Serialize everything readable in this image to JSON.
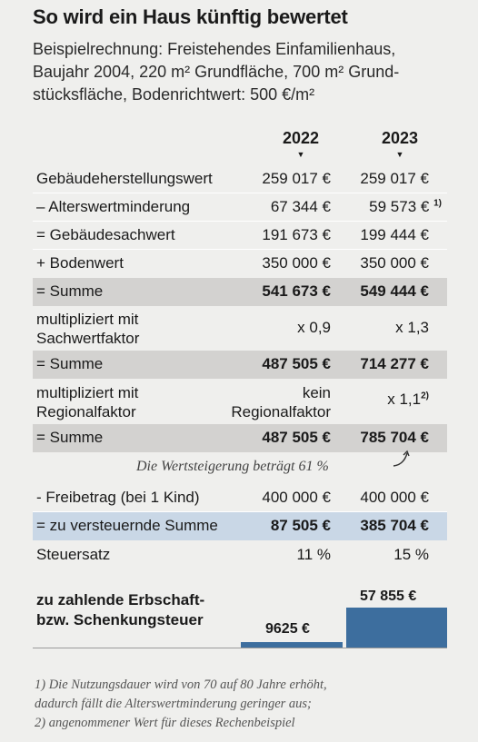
{
  "title": "So wird ein Haus künftig bewertet",
  "subtitle": {
    "line1": "Beispielrechnung: Freistehendes Einfamilienhaus,",
    "line2": "Baujahr 2004, 220 m² Grundfläche, 700 m² Grund-",
    "line3": "stücksfläche, Bodenrichtwert: 500 €/m²"
  },
  "years": {
    "y1": "2022",
    "y2": "2023",
    "arrow": "▼"
  },
  "rows": [
    {
      "label": "Gebäudeherstellungswert",
      "v2022": "259 017 €",
      "v2023": "259 017 €"
    },
    {
      "label": "– Alterswertminderung",
      "v2022": "67 344 €",
      "v2023": "59 573 €",
      "sup": "1)"
    },
    {
      "label": "= Gebäudesachwert",
      "v2022": "191 673 €",
      "v2023": "199 444 €"
    },
    {
      "label": "+ Bodenwert",
      "v2022": "350 000 €",
      "v2023": "350 000 €"
    },
    {
      "label": "= Summe",
      "v2022": "541 673 €",
      "v2023": "549 444 €"
    },
    {
      "label1": "multipliziert mit",
      "label2": "Sachwertfaktor",
      "v2022": "x 0,9",
      "v2023": "x 1,3"
    },
    {
      "label": "= Summe",
      "v2022": "487 505 €",
      "v2023": "714 277 €"
    },
    {
      "label1": "multipliziert mit",
      "label2": "Regionalfaktor",
      "v2022a": "kein",
      "v2022b": "Regionalfaktor",
      "v2023": "x 1,1",
      "sup": "2)"
    },
    {
      "label": "= Summe",
      "v2022": "487 505 €",
      "v2023": "785 704 €"
    }
  ],
  "increase_note": "Die Wertsteigerung beträgt 61 %",
  "tax_rows": [
    {
      "label": "-  Freibetrag (bei 1 Kind)",
      "v2022": "400 000 €",
      "v2023": "400 000 €"
    },
    {
      "label": "= zu versteuernde Summe",
      "v2022": "87 505 €",
      "v2023": "385 704 €"
    },
    {
      "label": "Steuersatz",
      "v2022": "11 %",
      "v2023": "15 %"
    }
  ],
  "final": {
    "label1": "zu zahlende Erbschaft-",
    "label2": "bzw. Schenkungsteuer",
    "v2022": "9625 €",
    "v2023": "57 855 €"
  },
  "footnotes": {
    "f1a": "1) Die Nutzungsdauer wird von 70 auf 80 Jahre erhöht,",
    "f1b": "dadurch fällt die Alterswertminderung geringer aus;",
    "f2": "2) angenommener Wert für dieses Rechenbeispiel"
  },
  "colors": {
    "bar": "#3d6e9e",
    "grey_row": "#d3d2d0",
    "blue_row": "#c9d7e6"
  }
}
